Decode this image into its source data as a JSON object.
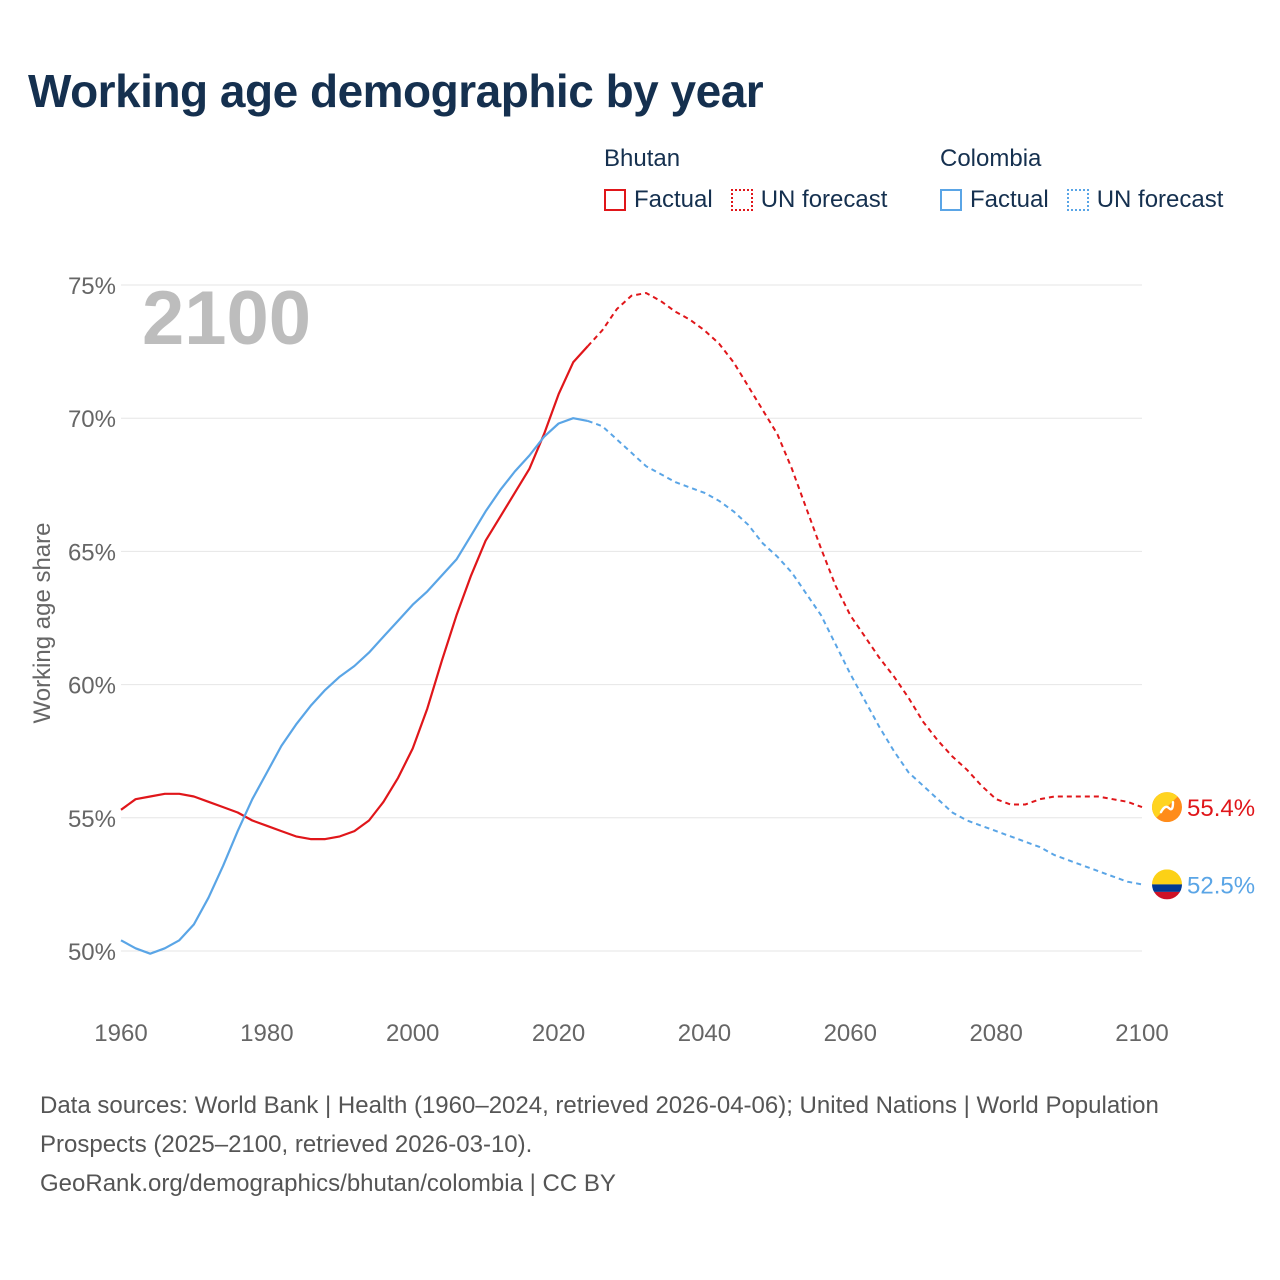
{
  "title": "Working age demographic by year",
  "legend": [
    {
      "group": "Bhutan",
      "factual_label": "Factual",
      "forecast_label": "UN forecast",
      "color": "#e0161a"
    },
    {
      "group": "Colombia",
      "factual_label": "Factual",
      "forecast_label": "UN forecast",
      "color": "#5aa5e6"
    }
  ],
  "year_watermark": "2100",
  "footer": {
    "sources": "Data sources: World Bank | Health (1960–2024, retrieved 2026-04-06); United Nations | World Population Prospects (2025–2100, retrieved 2026-03-10).",
    "credit": "GeoRank.org/demographics/bhutan/colombia | CC BY"
  },
  "chart_data": {
    "type": "line",
    "title": "Working age demographic by year",
    "xlabel": "",
    "ylabel": "Working age share",
    "xlim": [
      1960,
      2100
    ],
    "ylim": [
      50,
      75
    ],
    "x_ticks": [
      "1960",
      "1980",
      "2000",
      "2020",
      "2040",
      "2060",
      "2080",
      "2100"
    ],
    "y_ticks": [
      "50%",
      "55%",
      "60%",
      "65%",
      "70%",
      "75%"
    ],
    "forecast_start_year": 2025,
    "series": [
      {
        "name": "Bhutan",
        "color": "#e0161a",
        "end_label": "55.4%",
        "points": [
          [
            1960,
            55.3
          ],
          [
            1962,
            55.7
          ],
          [
            1964,
            55.8
          ],
          [
            1966,
            55.9
          ],
          [
            1968,
            55.9
          ],
          [
            1970,
            55.8
          ],
          [
            1972,
            55.6
          ],
          [
            1974,
            55.4
          ],
          [
            1976,
            55.2
          ],
          [
            1978,
            54.9
          ],
          [
            1980,
            54.7
          ],
          [
            1982,
            54.5
          ],
          [
            1984,
            54.3
          ],
          [
            1986,
            54.2
          ],
          [
            1988,
            54.2
          ],
          [
            1990,
            54.3
          ],
          [
            1992,
            54.5
          ],
          [
            1994,
            54.9
          ],
          [
            1996,
            55.6
          ],
          [
            1998,
            56.5
          ],
          [
            2000,
            57.6
          ],
          [
            2002,
            59.1
          ],
          [
            2004,
            60.9
          ],
          [
            2006,
            62.6
          ],
          [
            2008,
            64.1
          ],
          [
            2010,
            65.4
          ],
          [
            2012,
            66.3
          ],
          [
            2014,
            67.2
          ],
          [
            2016,
            68.1
          ],
          [
            2018,
            69.4
          ],
          [
            2020,
            70.9
          ],
          [
            2022,
            72.1
          ],
          [
            2024,
            72.7
          ],
          [
            2026,
            73.3
          ],
          [
            2028,
            74.1
          ],
          [
            2030,
            74.6
          ],
          [
            2032,
            74.7
          ],
          [
            2034,
            74.4
          ],
          [
            2036,
            74.0
          ],
          [
            2038,
            73.7
          ],
          [
            2040,
            73.3
          ],
          [
            2042,
            72.8
          ],
          [
            2044,
            72.1
          ],
          [
            2046,
            71.2
          ],
          [
            2048,
            70.3
          ],
          [
            2050,
            69.4
          ],
          [
            2052,
            68.1
          ],
          [
            2054,
            66.6
          ],
          [
            2056,
            65.1
          ],
          [
            2058,
            63.7
          ],
          [
            2060,
            62.6
          ],
          [
            2062,
            61.8
          ],
          [
            2064,
            61.0
          ],
          [
            2066,
            60.3
          ],
          [
            2068,
            59.5
          ],
          [
            2070,
            58.6
          ],
          [
            2072,
            57.9
          ],
          [
            2074,
            57.3
          ],
          [
            2076,
            56.8
          ],
          [
            2078,
            56.2
          ],
          [
            2080,
            55.7
          ],
          [
            2082,
            55.5
          ],
          [
            2084,
            55.5
          ],
          [
            2086,
            55.7
          ],
          [
            2088,
            55.8
          ],
          [
            2090,
            55.8
          ],
          [
            2092,
            55.8
          ],
          [
            2094,
            55.8
          ],
          [
            2096,
            55.7
          ],
          [
            2098,
            55.6
          ],
          [
            2100,
            55.4
          ]
        ]
      },
      {
        "name": "Colombia",
        "color": "#5aa5e6",
        "end_label": "52.5%",
        "points": [
          [
            1960,
            50.4
          ],
          [
            1962,
            50.1
          ],
          [
            1964,
            49.9
          ],
          [
            1966,
            50.1
          ],
          [
            1968,
            50.4
          ],
          [
            1970,
            51.0
          ],
          [
            1972,
            52.0
          ],
          [
            1974,
            53.2
          ],
          [
            1976,
            54.5
          ],
          [
            1978,
            55.7
          ],
          [
            1980,
            56.7
          ],
          [
            1982,
            57.7
          ],
          [
            1984,
            58.5
          ],
          [
            1986,
            59.2
          ],
          [
            1988,
            59.8
          ],
          [
            1990,
            60.3
          ],
          [
            1992,
            60.7
          ],
          [
            1994,
            61.2
          ],
          [
            1996,
            61.8
          ],
          [
            1998,
            62.4
          ],
          [
            2000,
            63.0
          ],
          [
            2002,
            63.5
          ],
          [
            2004,
            64.1
          ],
          [
            2006,
            64.7
          ],
          [
            2008,
            65.6
          ],
          [
            2010,
            66.5
          ],
          [
            2012,
            67.3
          ],
          [
            2014,
            68.0
          ],
          [
            2016,
            68.6
          ],
          [
            2018,
            69.3
          ],
          [
            2020,
            69.8
          ],
          [
            2022,
            70.0
          ],
          [
            2024,
            69.9
          ],
          [
            2026,
            69.7
          ],
          [
            2028,
            69.2
          ],
          [
            2030,
            68.7
          ],
          [
            2032,
            68.2
          ],
          [
            2034,
            67.9
          ],
          [
            2036,
            67.6
          ],
          [
            2038,
            67.4
          ],
          [
            2040,
            67.2
          ],
          [
            2042,
            66.9
          ],
          [
            2044,
            66.5
          ],
          [
            2046,
            66.0
          ],
          [
            2048,
            65.3
          ],
          [
            2050,
            64.8
          ],
          [
            2052,
            64.2
          ],
          [
            2054,
            63.4
          ],
          [
            2056,
            62.6
          ],
          [
            2058,
            61.5
          ],
          [
            2060,
            60.4
          ],
          [
            2062,
            59.4
          ],
          [
            2064,
            58.4
          ],
          [
            2066,
            57.5
          ],
          [
            2068,
            56.7
          ],
          [
            2070,
            56.2
          ],
          [
            2072,
            55.7
          ],
          [
            2074,
            55.2
          ],
          [
            2076,
            54.9
          ],
          [
            2078,
            54.7
          ],
          [
            2080,
            54.5
          ],
          [
            2082,
            54.3
          ],
          [
            2084,
            54.1
          ],
          [
            2086,
            53.9
          ],
          [
            2088,
            53.6
          ],
          [
            2090,
            53.4
          ],
          [
            2092,
            53.2
          ],
          [
            2094,
            53.0
          ],
          [
            2096,
            52.8
          ],
          [
            2098,
            52.6
          ],
          [
            2100,
            52.5
          ]
        ]
      }
    ]
  }
}
